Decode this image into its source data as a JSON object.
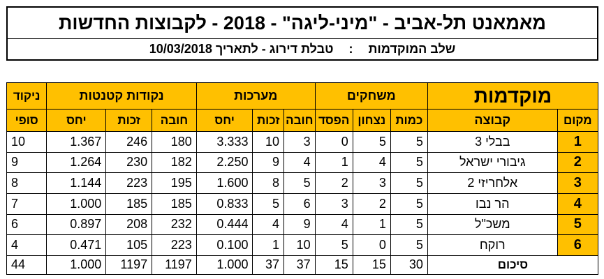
{
  "header": {
    "title": "מאמאנט תל-אביב - \"מיני-ליגה\" - 2018 - לקבוצות החדשות",
    "stage": "שלב המוקדמות",
    "separator": ":",
    "table_label": "טבלת דירוג - לתאריך 10/03/2018"
  },
  "table": {
    "section_title": "מוקדמות",
    "group_headers": {
      "games": "משחקים",
      "sets": "מערכות",
      "points": "נקודות קטנטות",
      "final_top": "ניקוד",
      "final_bottom": "סופי"
    },
    "sub_headers": {
      "place": "מקום",
      "team": "קבוצה",
      "played": "כמות",
      "won": "נצחון",
      "lost": "הפסד",
      "sets_against": "חובה",
      "sets_for": "זכות",
      "sets_ratio": "יחס",
      "points_against": "חובה",
      "points_for": "זכות",
      "points_ratio": "יחס"
    },
    "rows": [
      {
        "place": "1",
        "team": "בבלי 3",
        "played": "5",
        "won": "5",
        "lost": "0",
        "sets_against": "3",
        "sets_for": "10",
        "sets_ratio": "3.333",
        "points_against": "180",
        "points_for": "246",
        "points_ratio": "1.367",
        "final": "10"
      },
      {
        "place": "2",
        "team": "גיבורי ישראל",
        "played": "5",
        "won": "4",
        "lost": "1",
        "sets_against": "4",
        "sets_for": "9",
        "sets_ratio": "2.250",
        "points_against": "182",
        "points_for": "230",
        "points_ratio": "1.264",
        "final": "9"
      },
      {
        "place": "3",
        "team": "אלחריזי 2",
        "played": "5",
        "won": "3",
        "lost": "2",
        "sets_against": "5",
        "sets_for": "8",
        "sets_ratio": "1.600",
        "points_against": "195",
        "points_for": "223",
        "points_ratio": "1.144",
        "final": "8"
      },
      {
        "place": "4",
        "team": "הר נבו",
        "played": "5",
        "won": "2",
        "lost": "3",
        "sets_against": "6",
        "sets_for": "5",
        "sets_ratio": "0.833",
        "points_against": "185",
        "points_for": "185",
        "points_ratio": "1.000",
        "final": "7"
      },
      {
        "place": "5",
        "team": "משכ\"ל",
        "played": "5",
        "won": "1",
        "lost": "4",
        "sets_against": "9",
        "sets_for": "4",
        "sets_ratio": "0.444",
        "points_against": "232",
        "points_for": "208",
        "points_ratio": "0.897",
        "final": "6"
      },
      {
        "place": "6",
        "team": "רוקח",
        "played": "5",
        "won": "0",
        "lost": "5",
        "sets_against": "10",
        "sets_for": "1",
        "sets_ratio": "0.100",
        "points_against": "223",
        "points_for": "105",
        "points_ratio": "0.471",
        "final": "4"
      }
    ],
    "totals": {
      "label": "סיכום",
      "played": "30",
      "won": "15",
      "lost": "15",
      "sets_against": "37",
      "sets_for": "37",
      "sets_ratio": "1.000",
      "points_against": "1197",
      "points_for": "1197",
      "points_ratio": "1.000",
      "final": "44"
    }
  },
  "colors": {
    "header_fill": "#ffc000",
    "border": "#000000"
  }
}
